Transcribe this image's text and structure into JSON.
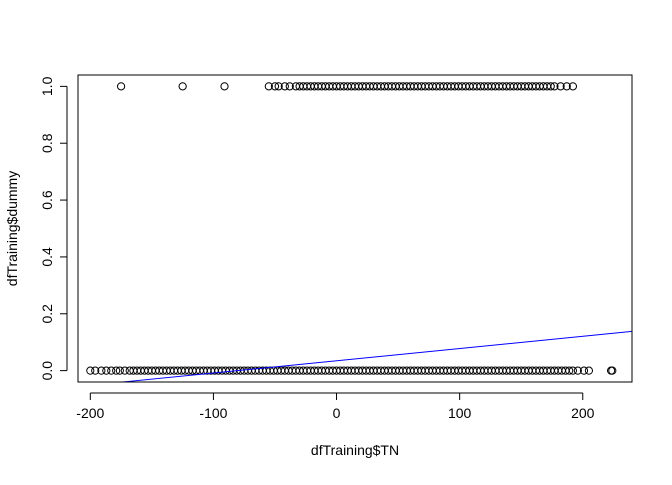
{
  "chart_data": {
    "type": "scatter",
    "title": "",
    "xlabel": "dfTraining$TN",
    "ylabel": "dfTraining$dummy",
    "xlim": [
      -210,
      240
    ],
    "ylim": [
      -0.04,
      1.04
    ],
    "x_ticks": [
      -200,
      -100,
      0,
      100,
      200
    ],
    "x_tick_labels": [
      "-200",
      "-100",
      "0",
      "100",
      "200"
    ],
    "y_ticks": [
      0.0,
      0.2,
      0.4,
      0.6,
      0.8,
      1.0
    ],
    "y_tick_labels": [
      "0.0",
      "0.2",
      "0.4",
      "0.6",
      "0.8",
      "1.0"
    ],
    "grid": false,
    "legend": "none",
    "point_color": "#000000",
    "line_color": "#0000ff",
    "series": [
      {
        "values_y1_x": [
          -175,
          -125,
          -91,
          -55,
          -50,
          -47,
          -42,
          -38,
          -33,
          -30,
          -27,
          -24,
          -21,
          -18,
          -15,
          -12,
          -9,
          -6,
          -3,
          0,
          3,
          6,
          9,
          12,
          15,
          18,
          21,
          24,
          27,
          30,
          33,
          36,
          39,
          42,
          45,
          48,
          51,
          54,
          57,
          60,
          63,
          66,
          69,
          72,
          75,
          78,
          81,
          84,
          87,
          90,
          93,
          96,
          99,
          102,
          105,
          108,
          111,
          114,
          117,
          120,
          123,
          126,
          129,
          132,
          135,
          138,
          141,
          144,
          147,
          150,
          153,
          156,
          159,
          162,
          165,
          168,
          171,
          174,
          177,
          182,
          187,
          192
        ],
        "values_y0_x": [
          -200,
          -196,
          -191,
          -187,
          -183,
          -179,
          -176,
          -172,
          -168,
          -165,
          -162,
          -159,
          -156,
          -153,
          -150,
          -147,
          -144,
          -141,
          -138,
          -135,
          -132,
          -129,
          -126,
          -123,
          -120,
          -117,
          -114,
          -111,
          -108,
          -105,
          -102,
          -99,
          -96,
          -93,
          -90,
          -87,
          -84,
          -81,
          -78,
          -75,
          -72,
          -69,
          -66,
          -63,
          -60,
          -57,
          -54,
          -51,
          -48,
          -45,
          -42,
          -39,
          -36,
          -33,
          -30,
          -27,
          -24,
          -21,
          -18,
          -15,
          -12,
          -9,
          -6,
          -3,
          0,
          3,
          6,
          9,
          12,
          15,
          18,
          21,
          24,
          27,
          30,
          33,
          36,
          39,
          42,
          45,
          48,
          51,
          54,
          57,
          60,
          63,
          66,
          69,
          72,
          75,
          78,
          81,
          84,
          87,
          90,
          93,
          96,
          99,
          102,
          105,
          108,
          111,
          114,
          117,
          120,
          123,
          126,
          129,
          132,
          135,
          138,
          141,
          144,
          147,
          150,
          153,
          156,
          159,
          162,
          165,
          168,
          171,
          174,
          177,
          180,
          183,
          186,
          189,
          192,
          196,
          201,
          205,
          223,
          224
        ]
      }
    ],
    "fit_line": {
      "intercept": 0.0347,
      "slope": 0.00043
    }
  }
}
